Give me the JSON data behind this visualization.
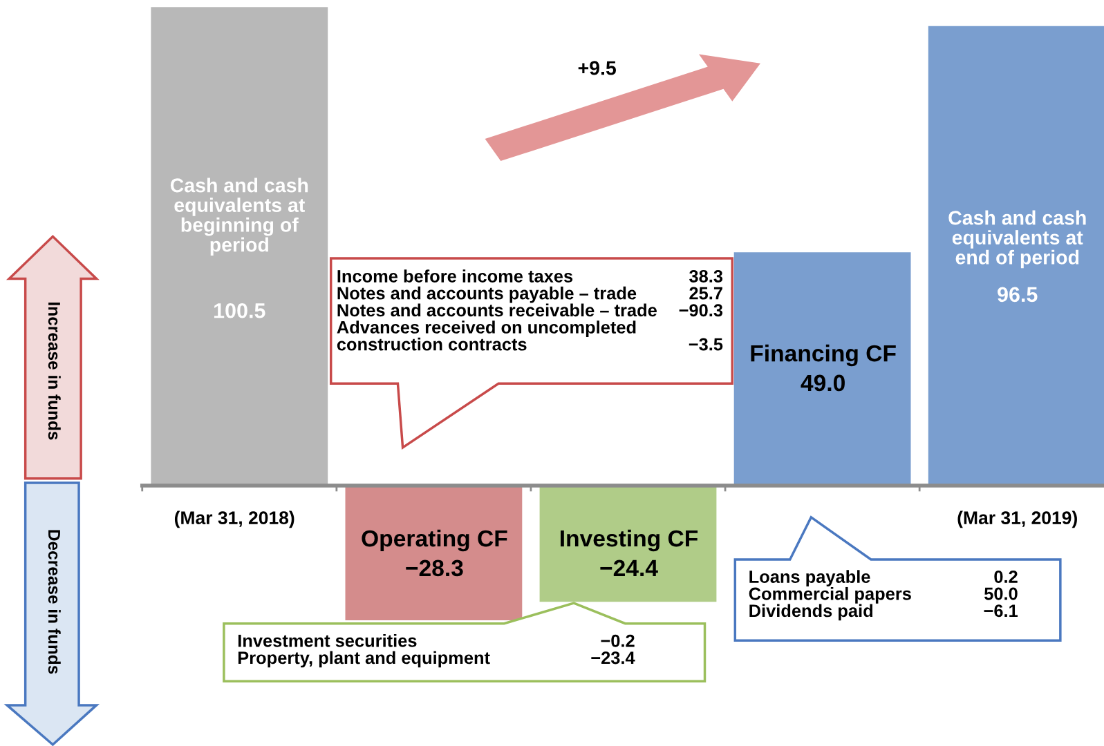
{
  "chart_data": {
    "type": "bar",
    "categories": [
      "Cash and cash\nequivalents at\nbeginning of\nperiod",
      "Operating CF",
      "Investing CF",
      "Financing CF",
      "Cash and cash\nequivalents at\nend of period"
    ],
    "values": [
      100.5,
      -28.3,
      -24.4,
      49.0,
      96.5
    ],
    "colors": [
      "#b8b8b8",
      "#d48c8c",
      "#b0cc88",
      "#7a9ecf",
      "#7a9ecf"
    ],
    "value_labels": [
      "100.5",
      "−28.3",
      "−24.4",
      "49.0",
      "96.5"
    ],
    "annotations": [
      "(Mar 31, 2018)",
      "(Mar 31, 2019)",
      "+9.5",
      "Increase in funds",
      "Decrease in funds",
      "Income before income taxes\nNotes and accounts payable – trade\nNotes and accounts receivable – trade\nAdvances received on uncompleted\nconstruction contracts",
      "38.3\n25.7\n−90.3\n\n−3.5",
      "Investment securities\nProperty, plant and equipment",
      "−0.2\n−23.4",
      "Loans payable\nCommercial papers\nDividends paid",
      "0.2\n50.0\n−6.1"
    ]
  }
}
